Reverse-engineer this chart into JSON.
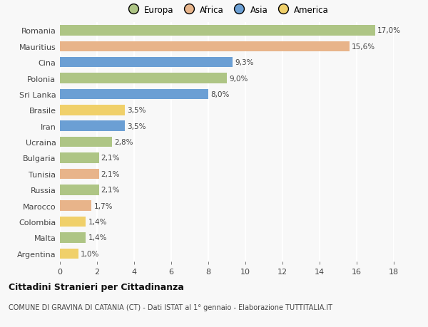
{
  "categories": [
    "Romania",
    "Mauritius",
    "Cina",
    "Polonia",
    "Sri Lanka",
    "Brasile",
    "Iran",
    "Ucraina",
    "Bulgaria",
    "Tunisia",
    "Russia",
    "Marocco",
    "Colombia",
    "Malta",
    "Argentina"
  ],
  "values": [
    17.0,
    15.6,
    9.3,
    9.0,
    8.0,
    3.5,
    3.5,
    2.8,
    2.1,
    2.1,
    2.1,
    1.7,
    1.4,
    1.4,
    1.0
  ],
  "labels": [
    "17,0%",
    "15,6%",
    "9,3%",
    "9,0%",
    "8,0%",
    "3,5%",
    "3,5%",
    "2,8%",
    "2,1%",
    "2,1%",
    "2,1%",
    "1,7%",
    "1,4%",
    "1,4%",
    "1,0%"
  ],
  "continents": [
    "Europa",
    "Africa",
    "Asia",
    "Europa",
    "Asia",
    "America",
    "Asia",
    "Europa",
    "Europa",
    "Africa",
    "Europa",
    "Africa",
    "America",
    "Europa",
    "America"
  ],
  "colors": {
    "Europa": "#aec585",
    "Africa": "#e8b48a",
    "Asia": "#6b9fd4",
    "America": "#f0d06a"
  },
  "title": "Cittadini Stranieri per Cittadinanza",
  "subtitle": "COMUNE DI GRAVINA DI CATANIA (CT) - Dati ISTAT al 1° gennaio - Elaborazione TUTTITALIA.IT",
  "xlim": [
    0,
    18
  ],
  "xticks": [
    0,
    2,
    4,
    6,
    8,
    10,
    12,
    14,
    16,
    18
  ],
  "background_color": "#f8f8f8",
  "grid_color": "#ffffff",
  "bar_height": 0.65,
  "legend_order": [
    "Europa",
    "Africa",
    "Asia",
    "America"
  ]
}
